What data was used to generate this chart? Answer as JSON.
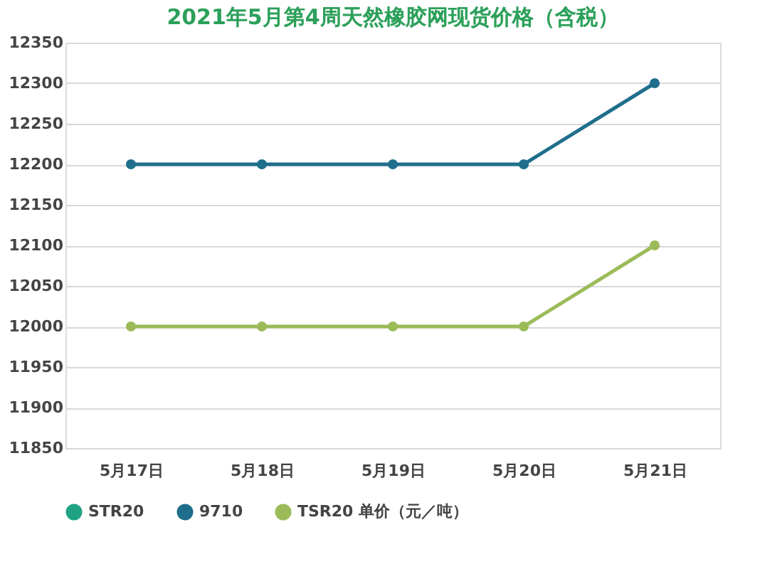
{
  "chart_data": {
    "type": "line",
    "title": "2021年5月第4周天然橡胶网现货价格（含税）",
    "categories": [
      "5月17日",
      "5月18日",
      "5月19日",
      "5月20日",
      "5月21日"
    ],
    "series": [
      {
        "name": "STR20",
        "color": "#1fa383",
        "values": [
          null,
          null,
          null,
          null,
          null
        ]
      },
      {
        "name": "9710",
        "color": "#1f6e8c",
        "values": [
          12200,
          12200,
          12200,
          12200,
          12300
        ]
      },
      {
        "name": "TSR20 单价（元／吨）",
        "color": "#9bbb59",
        "values": [
          12000,
          12000,
          12000,
          12000,
          12100
        ]
      }
    ],
    "ylim": [
      11850,
      12350
    ],
    "yticks": [
      11850,
      11900,
      11950,
      12000,
      12050,
      12100,
      12150,
      12200,
      12250,
      12300,
      12350
    ],
    "grid": "y",
    "legend": "bottom",
    "marker": "circle",
    "line_style": "solid"
  }
}
